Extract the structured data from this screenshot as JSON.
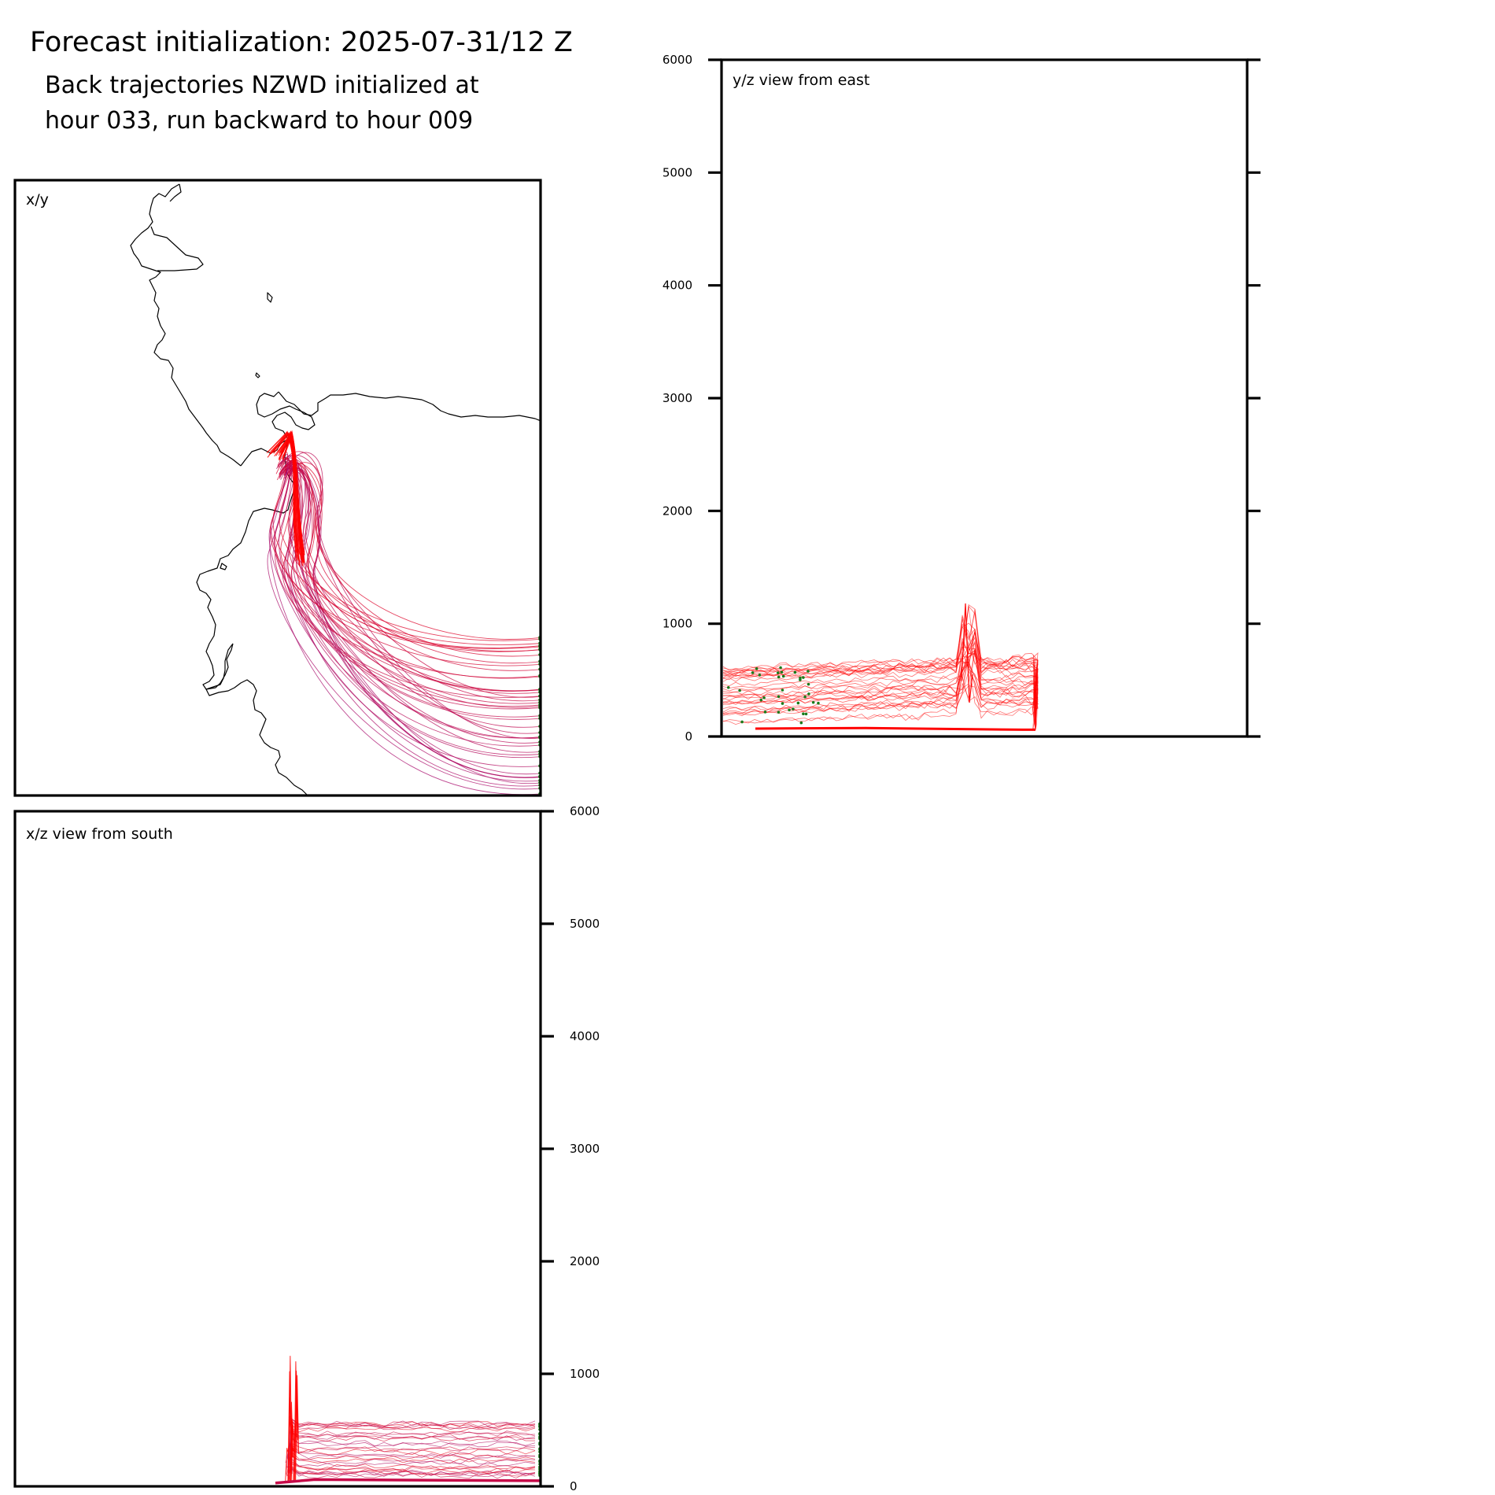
{
  "figure": {
    "title": "Forecast initialization: 2025-07-31/12 Z",
    "subtitle_lines": [
      "Back trajectories NZWD initialized at",
      "hour 033, run backward to hour 009"
    ]
  },
  "colors": {
    "trajectory_near": "#ff0000",
    "trajectory_far": "#a0107a",
    "endpoint_marker": "#1a7a1a",
    "coastline": "#000000",
    "axes": "#000000"
  },
  "chart_data": [
    {
      "type": "line",
      "panel": "x/y",
      "label": "x/y",
      "description_of_content": "map view with coastline and back trajectories",
      "grid": false,
      "series": []
    },
    {
      "type": "line",
      "panel": "y/z",
      "label": "y/z view from east",
      "ylim": [
        0,
        6000
      ],
      "yticks": [
        0,
        1000,
        2000,
        3000,
        4000,
        5000,
        6000
      ],
      "ytick_labels": [
        "0",
        "1000",
        "2000",
        "3000",
        "4000",
        "5000",
        "6000"
      ],
      "ytick_side": "left",
      "grid": false
    },
    {
      "type": "line",
      "panel": "x/z",
      "label": "x/z view from south",
      "ylim": [
        0,
        6000
      ],
      "yticks": [
        0,
        1000,
        2000,
        3000,
        4000,
        5000,
        6000
      ],
      "ytick_labels": [
        "0",
        "1000",
        "2000",
        "3000",
        "4000",
        "5000",
        "6000"
      ],
      "ytick_side": "right",
      "grid": false
    }
  ]
}
